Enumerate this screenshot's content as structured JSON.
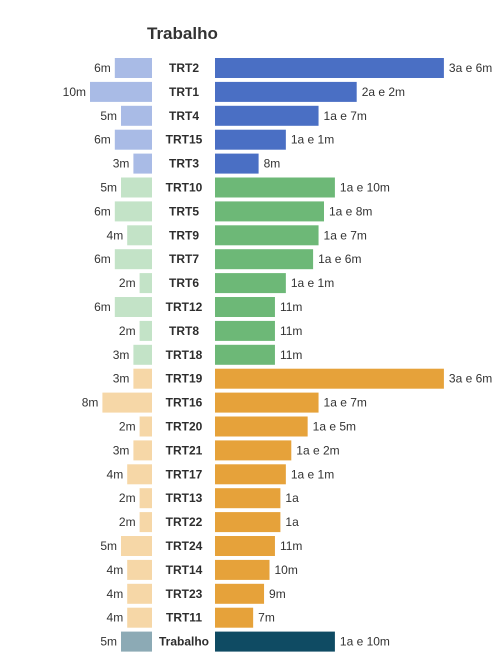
{
  "chart_data": {
    "type": "bar",
    "title": "Trabalho",
    "value_unit": "months",
    "colors": {
      "blue": [
        "#4a6fc4",
        "#a9bbe6"
      ],
      "green": [
        "#6db877",
        "#c3e3c7"
      ],
      "orange": [
        "#e6a23a",
        "#f6d7a7"
      ],
      "total": [
        "#0f4b63",
        "#8caab5"
      ]
    },
    "rows": [
      {
        "name": "TRT2",
        "group": "blue",
        "left_value": 6,
        "left_label": "6m",
        "right_value": 42,
        "right_label": "3a e 6m"
      },
      {
        "name": "TRT1",
        "group": "blue",
        "left_value": 10,
        "left_label": "10m",
        "right_value": 26,
        "right_label": "2a e 2m"
      },
      {
        "name": "TRT4",
        "group": "blue",
        "left_value": 5,
        "left_label": "5m",
        "right_value": 19,
        "right_label": "1a e 7m"
      },
      {
        "name": "TRT15",
        "group": "blue",
        "left_value": 6,
        "left_label": "6m",
        "right_value": 13,
        "right_label": "1a e 1m"
      },
      {
        "name": "TRT3",
        "group": "blue",
        "left_value": 3,
        "left_label": "3m",
        "right_value": 8,
        "right_label": "8m"
      },
      {
        "name": "TRT10",
        "group": "green",
        "left_value": 5,
        "left_label": "5m",
        "right_value": 22,
        "right_label": "1a e 10m"
      },
      {
        "name": "TRT5",
        "group": "green",
        "left_value": 6,
        "left_label": "6m",
        "right_value": 20,
        "right_label": "1a e 8m"
      },
      {
        "name": "TRT9",
        "group": "green",
        "left_value": 4,
        "left_label": "4m",
        "right_value": 19,
        "right_label": "1a e 7m"
      },
      {
        "name": "TRT7",
        "group": "green",
        "left_value": 6,
        "left_label": "6m",
        "right_value": 18,
        "right_label": "1a e 6m"
      },
      {
        "name": "TRT6",
        "group": "green",
        "left_value": 2,
        "left_label": "2m",
        "right_value": 13,
        "right_label": "1a e 1m"
      },
      {
        "name": "TRT12",
        "group": "green",
        "left_value": 6,
        "left_label": "6m",
        "right_value": 11,
        "right_label": "11m"
      },
      {
        "name": "TRT8",
        "group": "green",
        "left_value": 2,
        "left_label": "2m",
        "right_value": 11,
        "right_label": "11m"
      },
      {
        "name": "TRT18",
        "group": "green",
        "left_value": 3,
        "left_label": "3m",
        "right_value": 11,
        "right_label": "11m"
      },
      {
        "name": "TRT19",
        "group": "orange",
        "left_value": 3,
        "left_label": "3m",
        "right_value": 42,
        "right_label": "3a e 6m"
      },
      {
        "name": "TRT16",
        "group": "orange",
        "left_value": 8,
        "left_label": "8m",
        "right_value": 19,
        "right_label": "1a e 7m"
      },
      {
        "name": "TRT20",
        "group": "orange",
        "left_value": 2,
        "left_label": "2m",
        "right_value": 17,
        "right_label": "1a e 5m"
      },
      {
        "name": "TRT21",
        "group": "orange",
        "left_value": 3,
        "left_label": "3m",
        "right_value": 14,
        "right_label": "1a e 2m"
      },
      {
        "name": "TRT17",
        "group": "orange",
        "left_value": 4,
        "left_label": "4m",
        "right_value": 13,
        "right_label": "1a e 1m"
      },
      {
        "name": "TRT13",
        "group": "orange",
        "left_value": 2,
        "left_label": "2m",
        "right_value": 12,
        "right_label": "1a"
      },
      {
        "name": "TRT22",
        "group": "orange",
        "left_value": 2,
        "left_label": "2m",
        "right_value": 12,
        "right_label": "1a"
      },
      {
        "name": "TRT24",
        "group": "orange",
        "left_value": 5,
        "left_label": "5m",
        "right_value": 11,
        "right_label": "11m"
      },
      {
        "name": "TRT14",
        "group": "orange",
        "left_value": 4,
        "left_label": "4m",
        "right_value": 10,
        "right_label": "10m"
      },
      {
        "name": "TRT23",
        "group": "orange",
        "left_value": 4,
        "left_label": "4m",
        "right_value": 9,
        "right_label": "9m"
      },
      {
        "name": "TRT11",
        "group": "orange",
        "left_value": 4,
        "left_label": "4m",
        "right_value": 7,
        "right_label": "7m"
      },
      {
        "name": "Trabalho",
        "group": "total",
        "left_value": 5,
        "left_label": "5m",
        "right_value": 22,
        "right_label": "1a e 10m"
      }
    ]
  }
}
